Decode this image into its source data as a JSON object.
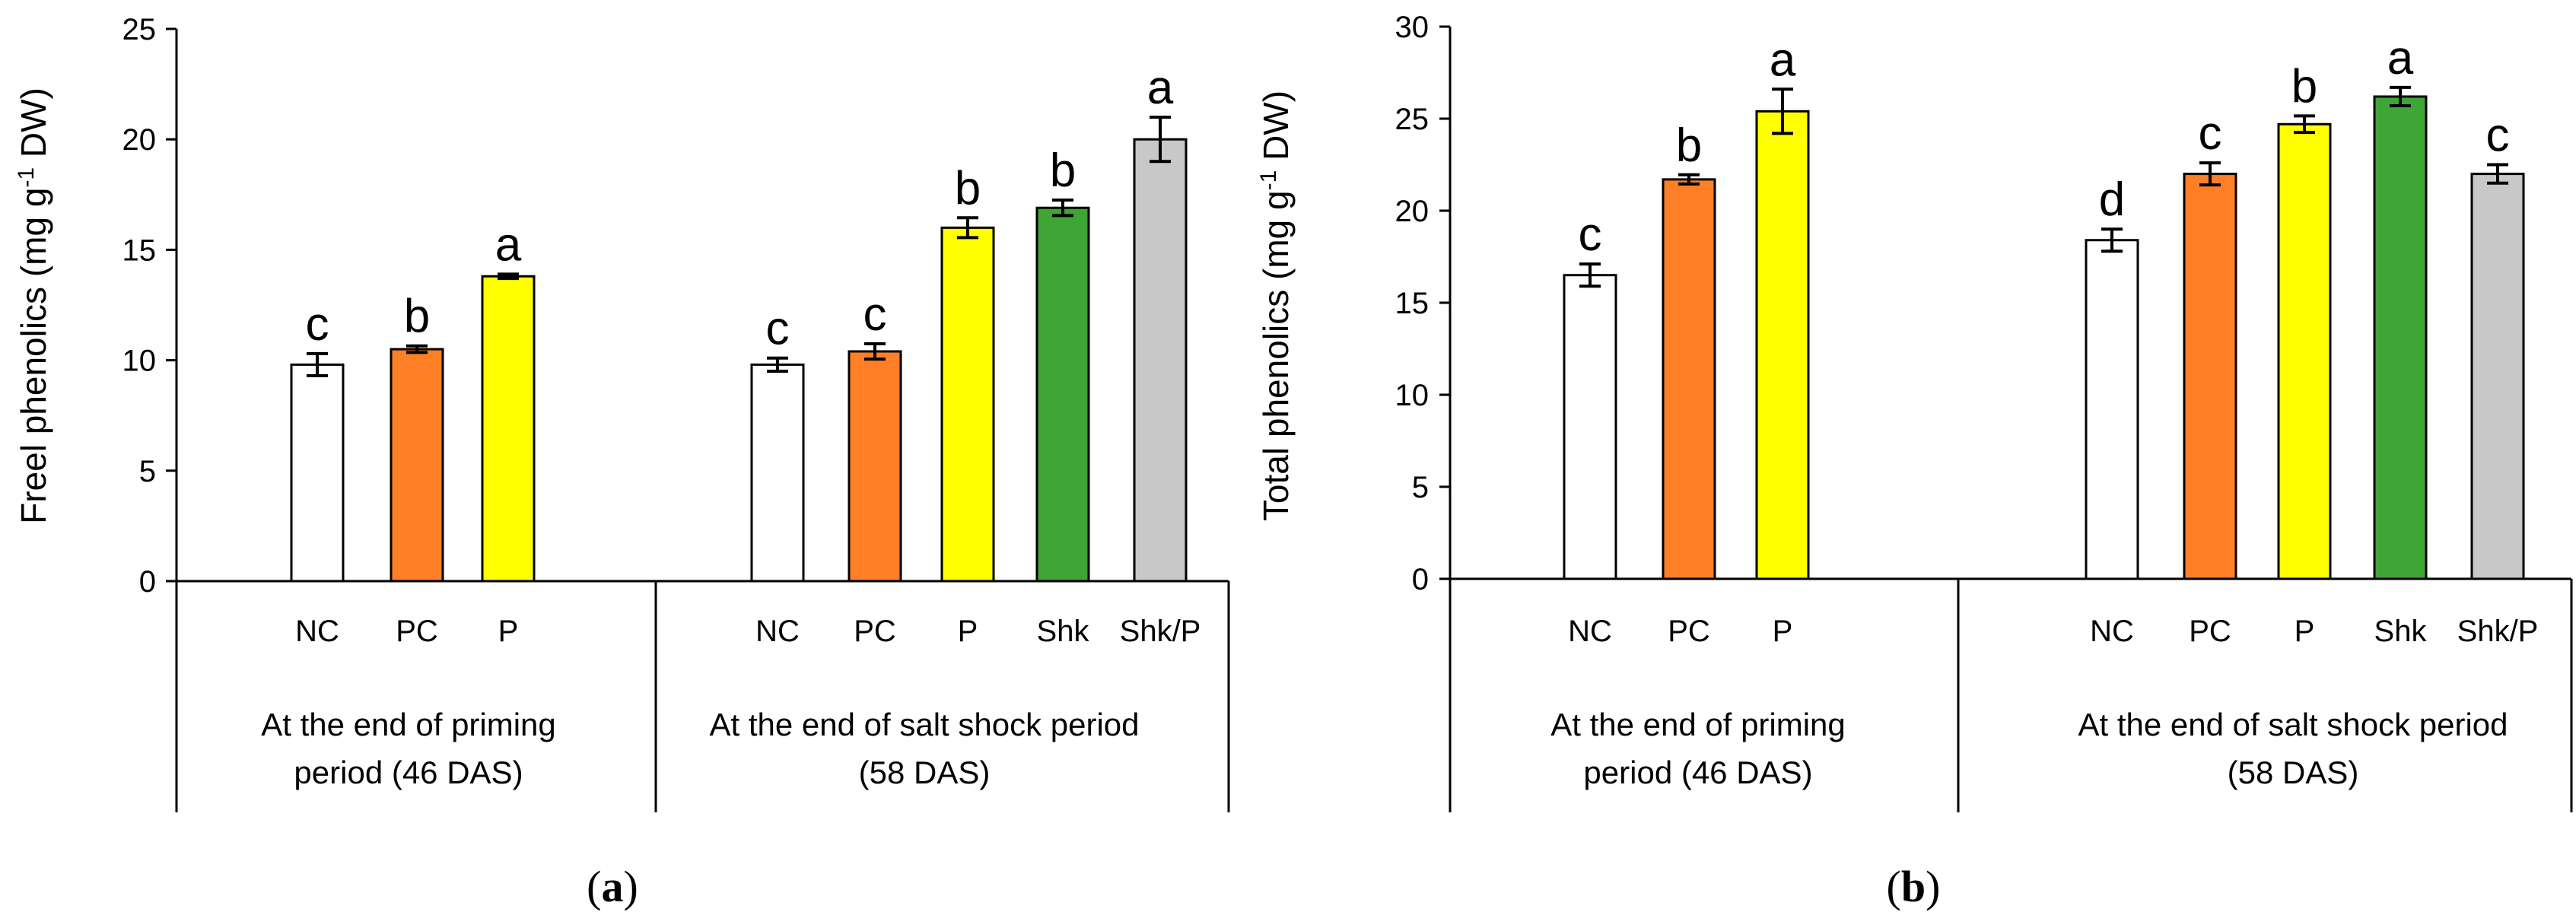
{
  "chart_data": [
    {
      "type": "bar",
      "panel_label": "a",
      "ylabel": "Freel phenolics (mg g⁻¹ DW)",
      "ylim": [
        0,
        25
      ],
      "yticks": [
        0,
        5,
        10,
        15,
        20,
        25
      ],
      "groups": [
        {
          "label_lines": [
            "At the end of priming",
            "period (46 DAS)"
          ],
          "bars": [
            {
              "category": "NC",
              "value": 9.8,
              "error": 0.5,
              "sig": "c",
              "color": "#ffffff"
            },
            {
              "category": "PC",
              "value": 10.5,
              "error": 0.15,
              "sig": "b",
              "color": "#ff7f27"
            },
            {
              "category": "P",
              "value": 13.8,
              "error": 0.1,
              "sig": "a",
              "color": "#ffff00"
            }
          ]
        },
        {
          "label_lines": [
            "At the end of salt shock period",
            "(58 DAS)"
          ],
          "bars": [
            {
              "category": "NC",
              "value": 9.8,
              "error": 0.3,
              "sig": "c",
              "color": "#ffffff"
            },
            {
              "category": "PC",
              "value": 10.4,
              "error": 0.35,
              "sig": "c",
              "color": "#ff7f27"
            },
            {
              "category": "P",
              "value": 16.0,
              "error": 0.45,
              "sig": "b",
              "color": "#ffff00"
            },
            {
              "category": "Shk",
              "value": 16.9,
              "error": 0.35,
              "sig": "b",
              "color": "#3fa535"
            },
            {
              "category": "Shk/P",
              "value": 20.0,
              "error": 1.0,
              "sig": "a",
              "color": "#c8c8c8"
            }
          ]
        }
      ]
    },
    {
      "type": "bar",
      "panel_label": "b",
      "ylabel": "Total phenolics (mg g⁻¹ DW)",
      "ylim": [
        0,
        30
      ],
      "yticks": [
        0,
        5,
        10,
        15,
        20,
        25,
        30
      ],
      "groups": [
        {
          "label_lines": [
            "At the end of priming",
            "period (46 DAS)"
          ],
          "bars": [
            {
              "category": "NC",
              "value": 16.5,
              "error": 0.6,
              "sig": "c",
              "color": "#ffffff"
            },
            {
              "category": "PC",
              "value": 21.7,
              "error": 0.25,
              "sig": "b",
              "color": "#ff7f27"
            },
            {
              "category": "P",
              "value": 25.4,
              "error": 1.2,
              "sig": "a",
              "color": "#ffff00"
            }
          ]
        },
        {
          "label_lines": [
            "At the end of salt shock period",
            "(58 DAS)"
          ],
          "bars": [
            {
              "category": "NC",
              "value": 18.4,
              "error": 0.6,
              "sig": "d",
              "color": "#ffffff"
            },
            {
              "category": "PC",
              "value": 22.0,
              "error": 0.6,
              "sig": "c",
              "color": "#ff7f27"
            },
            {
              "category": "P",
              "value": 24.7,
              "error": 0.45,
              "sig": "b",
              "color": "#ffff00"
            },
            {
              "category": "Shk",
              "value": 26.2,
              "error": 0.5,
              "sig": "a",
              "color": "#3fa535"
            },
            {
              "category": "Shk/P",
              "value": 22.0,
              "error": 0.5,
              "sig": "c",
              "color": "#c8c8c8"
            }
          ]
        }
      ]
    }
  ]
}
